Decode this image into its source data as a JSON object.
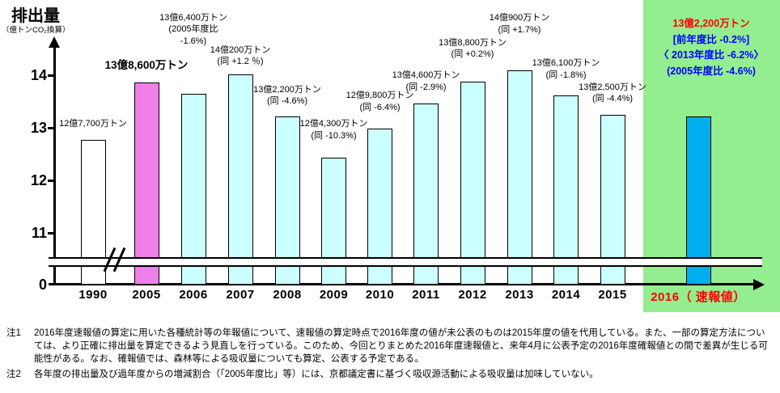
{
  "chart_data": {
    "type": "bar",
    "title": "排出量",
    "ylabel": "排出量",
    "ylabel_unit": "（億トンCO₂換算）",
    "unit": "億トンCO₂換算",
    "ylim": [
      0,
      14.4
    ],
    "yticks": [
      14,
      13,
      12,
      11,
      0
    ],
    "axis_break": "y-axis broken between 0 and 11 (white band with slash marks)",
    "grid": false,
    "legend": false,
    "categories": [
      "1990",
      "2005",
      "2006",
      "2007",
      "2008",
      "2009",
      "2010",
      "2011",
      "2012",
      "2013",
      "2014",
      "2015",
      "2016（ 速報値）"
    ],
    "values": [
      12.77,
      13.86,
      13.64,
      14.02,
      13.22,
      12.43,
      12.98,
      13.46,
      13.88,
      14.09,
      13.61,
      13.25,
      13.22
    ],
    "bar_colors": [
      "#FFFFFF",
      "#F07EE8",
      "#CCFFFF",
      "#CCFFFF",
      "#CCFFFF",
      "#CCFFFF",
      "#CCFFFF",
      "#CCFFFF",
      "#CCFFFF",
      "#CCFFFF",
      "#CCFFFF",
      "#CCFFFF",
      "#00AEEF"
    ],
    "highlight_background": "#92EE8F",
    "bar_labels": [
      [
        "12億7,700万トン"
      ],
      [
        "13億8,600万トン"
      ],
      [
        "13億6,400万トン",
        "(2005年度比",
        "-1.6%)"
      ],
      [
        "14億200万トン",
        "(同 +1.2 ％)"
      ],
      [
        "13億2,200万トン",
        "(同 -4.6%)"
      ],
      [
        "12億4,300万トン",
        "(同 -10.3%)"
      ],
      [
        "12億9,800万トン",
        "(同 -6.4%)"
      ],
      [
        "13億4,600万トン",
        "(同 -2.9%)"
      ],
      [
        "13億8,800万トン",
        "(同 +0.2%)"
      ],
      [
        "14億900万トン",
        "(同 +1.7%)"
      ],
      [
        "13億6,100万トン",
        "(同 -1.8%)"
      ],
      [
        "13億2,500万トン",
        "(同 -4.4%)"
      ],
      []
    ],
    "annotation_2016": {
      "lines": [
        {
          "text": "13億2,200万トン",
          "color": "#FF0000"
        },
        {
          "text": "[前年度比 -0.2%]",
          "color": "#0000FF"
        },
        {
          "text": "〈 2013年度比 -6.2%〉",
          "color": "#0000FF"
        },
        {
          "text": "(2005年度比 -4.6%)",
          "color": "#0000FF"
        }
      ]
    }
  },
  "notes": [
    {
      "label": "注1",
      "text": "2016年度速報値の算定に用いた各種統計等の年報値について、速報値の算定時点で2016年度の値が未公表のものは2015年度の値を代用している。また、一部の算定方法については、より正確に排出量を算定できるよう見直しを行っている。このため、今回とりまとめた2016年度速報値と、来年4月に公表予定の2016年度確報値との間で差異が生じる可能性がある。なお、確報値では、森林等による吸収量についても算定、公表する予定である。"
    },
    {
      "label": "注2",
      "text": "各年度の排出量及び過年度からの増減割合（「2005年度比」等）には、京都議定書に基づく吸収源活動による吸収量は加味していない。"
    }
  ]
}
